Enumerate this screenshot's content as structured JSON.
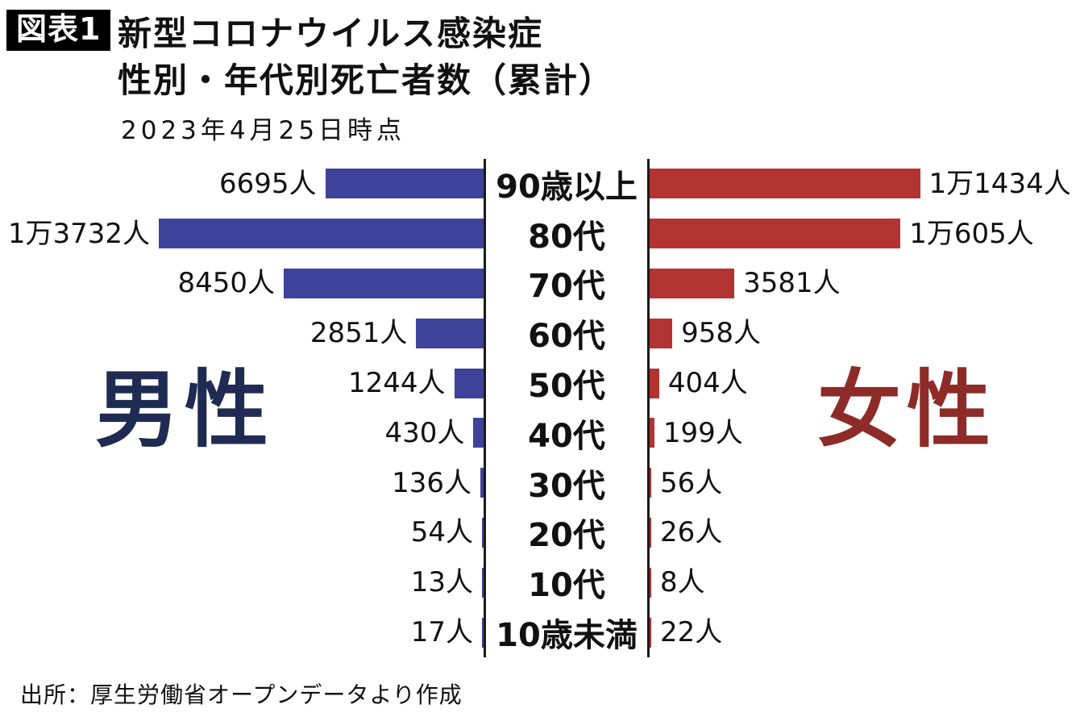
{
  "header": {
    "badge": "図表1",
    "title_line1": "新型コロナウイルス感染症",
    "title_line2": "性別・年代別死亡者数（累計）",
    "subtitle": "2023年4月25日時点"
  },
  "chart_data": {
    "type": "bar",
    "variant": "diverging-horizontal",
    "title": "新型コロナウイルス感染症 性別・年代別死亡者数（累計）",
    "subtitle": "2023年4月25日時点",
    "categories": [
      "90歳以上",
      "80代",
      "70代",
      "60代",
      "50代",
      "40代",
      "30代",
      "20代",
      "10代",
      "10歳未満"
    ],
    "unit": "人",
    "max_value": 13732,
    "axis": {
      "numeric_axis_shown": false,
      "center_axis_lines": true
    },
    "series": [
      {
        "name": "男性",
        "side": "left",
        "bar_color": "#3d439a",
        "name_color": "#1f2b52",
        "values": [
          6695,
          13732,
          8450,
          2851,
          1244,
          430,
          136,
          54,
          13,
          17
        ],
        "value_labels": [
          "6695人",
          "1万3732人",
          "8450人",
          "2851人",
          "1244人",
          "430人",
          "136人",
          "54人",
          "13人",
          "17人"
        ]
      },
      {
        "name": "女性",
        "side": "right",
        "bar_color": "#b23331",
        "name_color": "#8d2b28",
        "values": [
          11434,
          10605,
          3581,
          958,
          404,
          199,
          56,
          26,
          8,
          22
        ],
        "value_labels": [
          "1万1434人",
          "1万605人",
          "3581人",
          "958人",
          "404人",
          "199人",
          "56人",
          "26人",
          "8人",
          "22人"
        ]
      }
    ]
  },
  "source": "出所：厚生労働省オープンデータより作成"
}
